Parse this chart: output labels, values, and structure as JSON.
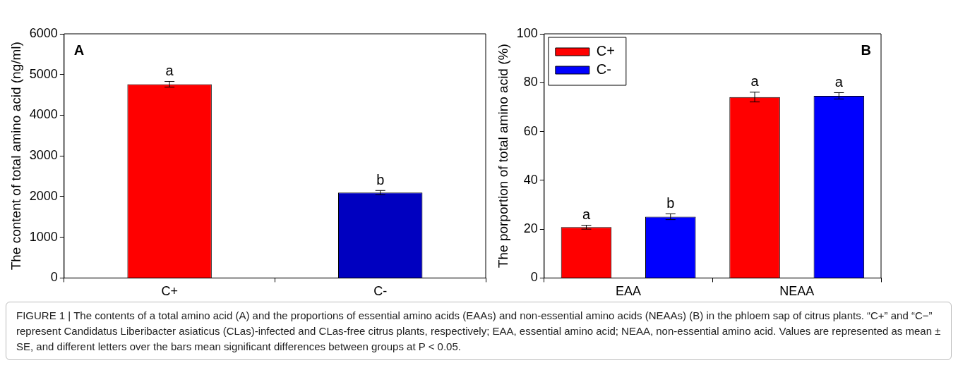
{
  "chart_data": [
    {
      "type": "bar",
      "ylabel": "The content of total amino acid (ng/ml)",
      "categories": [
        "C+",
        "C-"
      ],
      "values": [
        4760,
        2100
      ],
      "colors": [
        "#ff0000",
        "#0000c0"
      ],
      "errors": [
        70,
        50
      ],
      "ylim": [
        0,
        6000
      ],
      "yticks": [
        0,
        1000,
        2000,
        3000,
        4000,
        5000,
        6000
      ],
      "grid": false,
      "legend": false,
      "annotations": [
        "A",
        {
          "text": "a",
          "x": "C+",
          "y": 4760
        },
        {
          "text": "b",
          "x": "C-",
          "y": 2100
        }
      ]
    },
    {
      "type": "bar",
      "ylabel": "The porportion of total amino acid (%)",
      "categories": [
        "EAA",
        "NEAA"
      ],
      "grid": false,
      "legend": "top left",
      "ylim": [
        0,
        100
      ],
      "yticks": [
        0,
        20,
        40,
        60,
        80,
        100
      ],
      "series": [
        {
          "name": "C+",
          "color": "#ff0000",
          "values": [
            20.8,
            74.1
          ],
          "errors": [
            0.8,
            2.0
          ]
        },
        {
          "name": "C-",
          "color": "#0000ff",
          "values": [
            25.1,
            74.6
          ],
          "errors": [
            1.2,
            1.3
          ]
        }
      ],
      "annotations": [
        "B",
        "a",
        "b",
        "a",
        "a",
        "FIGURE 1 | The contents of a total amino acid (A) and the proportions of essential amino acids (EAAs) and non-essential amino acids (NEAAs) (B) in the phloem sap of citrus plants. “C+” and “C−” represent Candidatus Liberibacter asiaticus (CLas)-infected and CLas-free citrus plants, respectively; EAA, essential amino acid; NEAA, non-essential amino acid. Values are represented as mean ± SE, and different letters over the bars mean significant differences between groups at P < 0.05."
      ]
    }
  ]
}
